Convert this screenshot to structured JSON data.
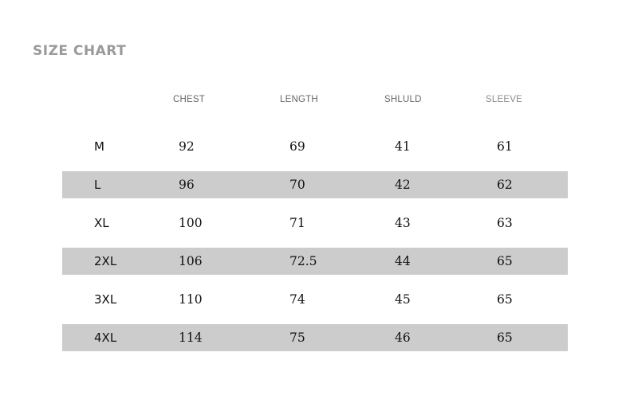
{
  "title": "SIZE CHART",
  "headers": [
    "CHEST",
    "LENGTH",
    "SHLULD",
    "SLEEVE"
  ],
  "rows": [
    {
      "size": "M",
      "chest": "92",
      "length": "69",
      "shoulder": "41",
      "sleeve": "61"
    },
    {
      "size": "L",
      "chest": "96",
      "length": "70",
      "shoulder": "42",
      "sleeve": "62"
    },
    {
      "size": "XL",
      "chest": "100",
      "length": "71",
      "shoulder": "43",
      "sleeve": "63"
    },
    {
      "size": "2XL",
      "chest": "106",
      "length": "72.5",
      "shoulder": "44",
      "sleeve": "65"
    },
    {
      "size": "3XL",
      "chest": "110",
      "length": "74",
      "shoulder": "45",
      "sleeve": "65"
    },
    {
      "size": "4XL",
      "chest": "114",
      "length": "75",
      "shoulder": "46",
      "sleeve": "65"
    }
  ],
  "colors": {
    "title": "#9a9a9a",
    "shaded_row": "#cccccc",
    "header": "#666666"
  }
}
